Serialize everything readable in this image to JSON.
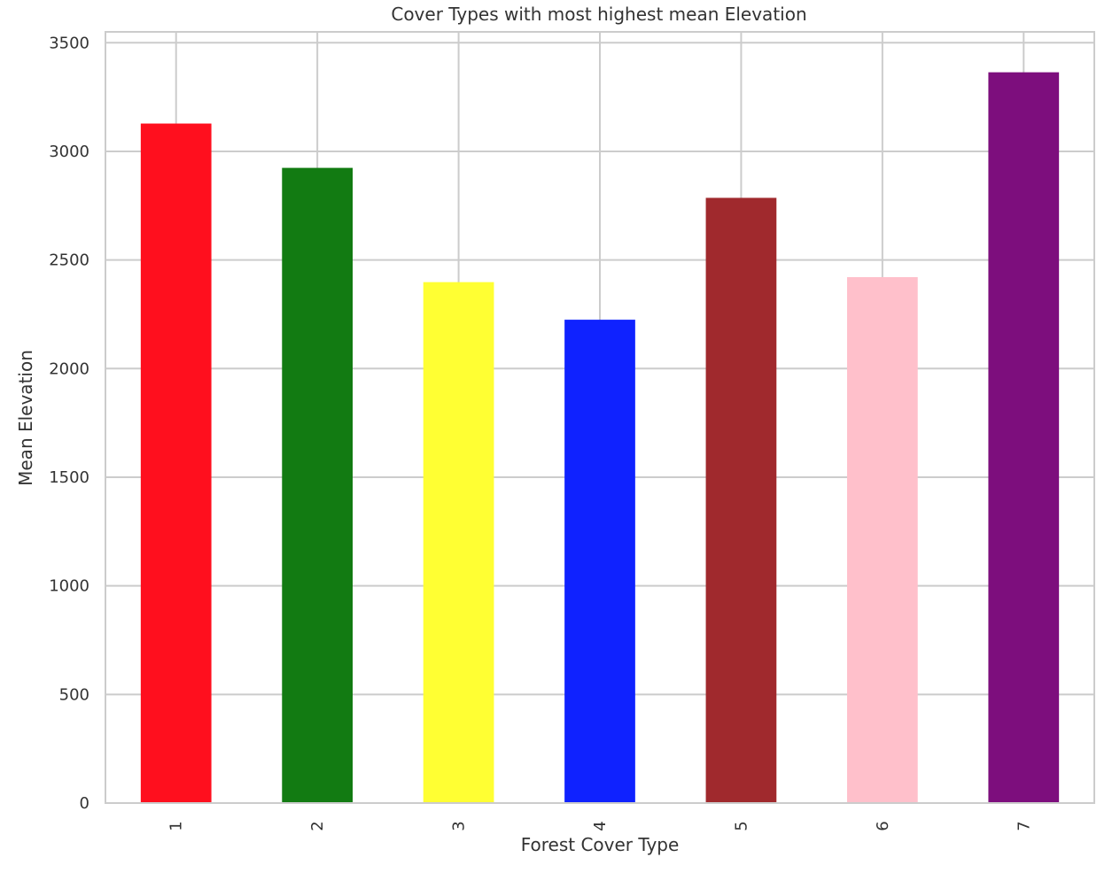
{
  "chart_data": {
    "type": "bar",
    "title": "Cover Types with most highest mean Elevation",
    "xlabel": "Forest Cover Type",
    "ylabel": "Mean Elevation",
    "categories": [
      "1",
      "2",
      "3",
      "4",
      "5",
      "6",
      "7"
    ],
    "values": [
      3128,
      2924,
      2398,
      2225,
      2786,
      2421,
      3364
    ],
    "colors": [
      "#ff0f1e",
      "#127b12",
      "#ffff33",
      "#0f22ff",
      "#a0292d",
      "#ffc0cb",
      "#7d0e7d"
    ],
    "ylim": [
      0,
      3550
    ],
    "yticks": [
      0,
      500,
      1000,
      1500,
      2000,
      2500,
      3000,
      3500
    ],
    "ytick_labels": [
      "0",
      "500",
      "1000",
      "1500",
      "2000",
      "2500",
      "3000",
      "3500"
    ],
    "xtick_rotation": "vertical",
    "grid": true,
    "legend": "none"
  }
}
